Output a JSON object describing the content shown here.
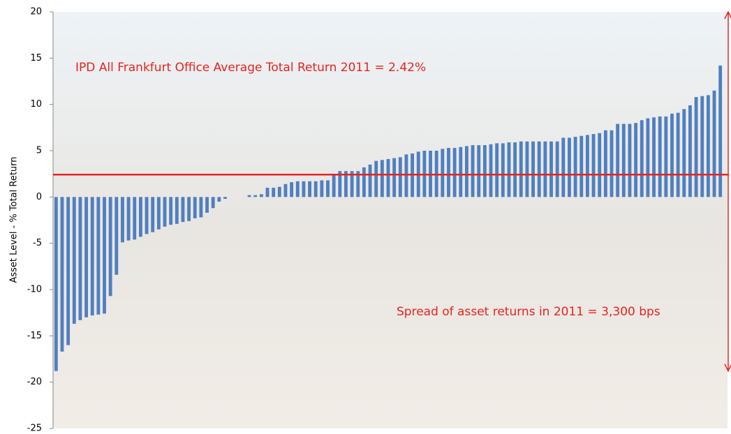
{
  "chart_data": {
    "type": "bar",
    "y_label": "Asset Level - % Total Return",
    "annotations": [
      "IPD All Frankfurt Office Average Total Return 2011 = 2.42%",
      "Spread of asset returns in 2011 = 3,300 bps"
    ],
    "reference_line": 2.42,
    "reference_color": "#e8231e",
    "color": "#4f7fc0",
    "ylim": [
      -25,
      20
    ],
    "yticks": [
      -25,
      -20,
      -15,
      -10,
      -5,
      0,
      5,
      10,
      15,
      20
    ],
    "values": [
      -18.8,
      -16.7,
      -16.0,
      -13.7,
      -13.3,
      -13.0,
      -12.8,
      -12.7,
      -12.6,
      -10.7,
      -8.4,
      -4.9,
      -4.7,
      -4.6,
      -4.3,
      -4.0,
      -3.8,
      -3.5,
      -3.2,
      -3.0,
      -2.9,
      -2.7,
      -2.6,
      -2.3,
      -2.2,
      -1.7,
      -1.2,
      -0.5,
      -0.2,
      0,
      0,
      0,
      0.2,
      0.2,
      0.3,
      1.0,
      1.0,
      1.1,
      1.4,
      1.6,
      1.7,
      1.7,
      1.7,
      1.7,
      1.8,
      1.8,
      2.5,
      2.8,
      2.8,
      2.8,
      2.8,
      3.2,
      3.5,
      3.9,
      4.0,
      4.1,
      4.2,
      4.3,
      4.6,
      4.7,
      4.9,
      5.0,
      5.0,
      5.0,
      5.2,
      5.3,
      5.3,
      5.4,
      5.5,
      5.6,
      5.6,
      5.6,
      5.7,
      5.8,
      5.8,
      5.9,
      5.9,
      6.0,
      6.0,
      6.0,
      6.0,
      6.0,
      6.0,
      6.0,
      6.4,
      6.4,
      6.5,
      6.6,
      6.7,
      6.8,
      6.9,
      7.2,
      7.2,
      7.9,
      7.9,
      7.9,
      8.0,
      8.3,
      8.5,
      8.6,
      8.7,
      8.7,
      9.0,
      9.1,
      9.5,
      9.9,
      10.8,
      10.9,
      11.0,
      11.5,
      14.2
    ]
  }
}
